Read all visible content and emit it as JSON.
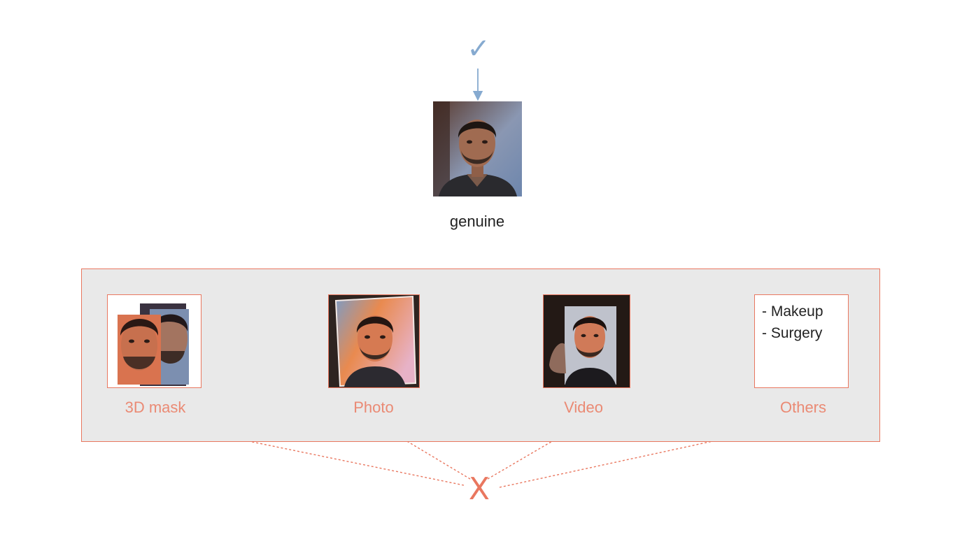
{
  "colors": {
    "genuine_accent": "#86aad0",
    "attack_accent": "#e9775f",
    "label_attack": "#ea8a74",
    "box_fill": "#e9e9e9",
    "text_dark": "#222222"
  },
  "genuine": {
    "check_icon": "checkmark-icon",
    "check_glyph": "✓",
    "label": "genuine"
  },
  "attacks": {
    "items": [
      {
        "label": "3D mask",
        "icon": "mask-face-image"
      },
      {
        "label": "Photo",
        "icon": "photo-face-image"
      },
      {
        "label": "Video",
        "icon": "video-face-image"
      },
      {
        "label": "Others",
        "icon": "others-list-box"
      }
    ],
    "others_list": [
      "- Makeup",
      "- Surgery"
    ]
  },
  "reject": {
    "icon": "cross-icon",
    "glyph": "X"
  }
}
